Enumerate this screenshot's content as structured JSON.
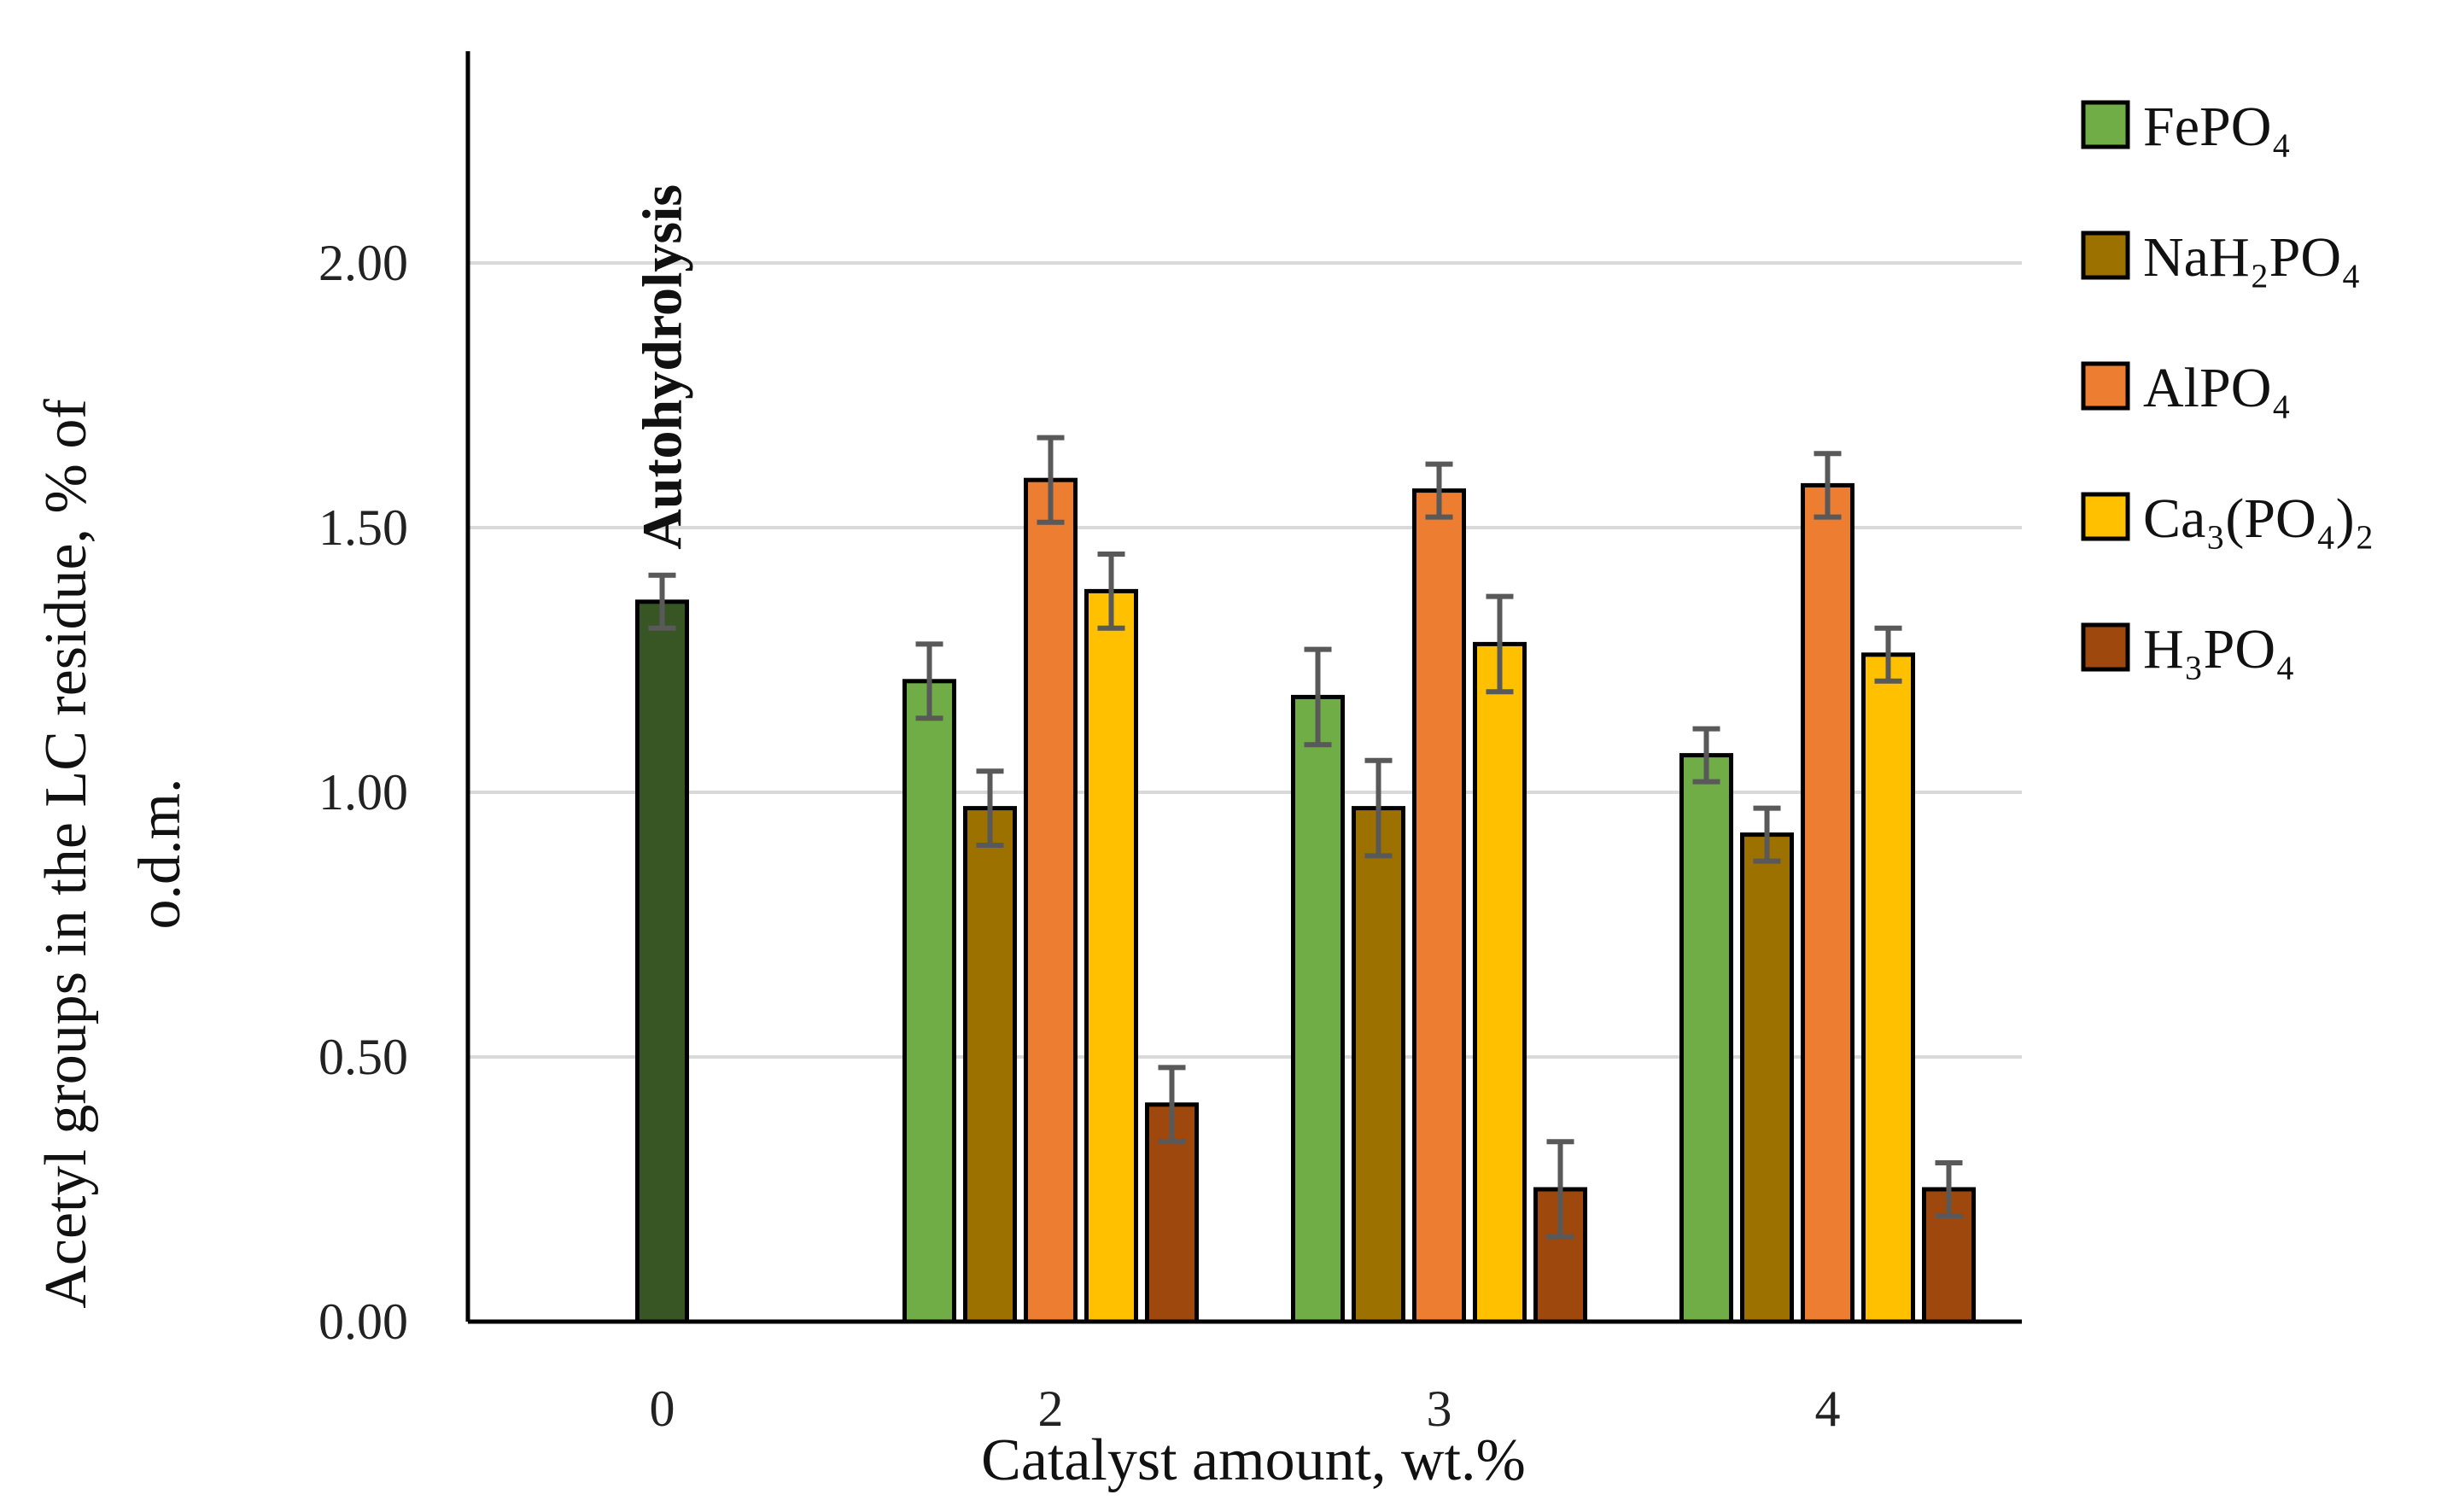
{
  "chart_data": {
    "type": "bar",
    "title": "",
    "xlabel": "Catalyst amount, wt.%",
    "ylabel_lines": [
      "Acetyl groups in the LC residue,  % of",
      "o.d.m."
    ],
    "ylim": [
      0,
      2.4
    ],
    "yticks": [
      0,
      0.5,
      1.0,
      1.5,
      2.0
    ],
    "ytick_labels": [
      "0.00",
      "0.50",
      "1.00",
      "1.50",
      "2.00"
    ],
    "grid": "horizontal",
    "legend_position": "right",
    "categories": [
      "0",
      "2",
      "3",
      "4"
    ],
    "annotation": {
      "text": "Autohydrolysis",
      "category": "0"
    },
    "autohydrolysis": {
      "category": "0",
      "value": 1.36,
      "error": 0.05,
      "color": "#375623"
    },
    "series": [
      {
        "name": "FePO₄",
        "color": "#70AD47",
        "values": [
          null,
          1.21,
          1.18,
          1.07
        ],
        "errors": [
          null,
          0.07,
          0.09,
          0.05
        ]
      },
      {
        "name": "NaH₂PO₄",
        "color": "#9C7100",
        "values": [
          null,
          0.97,
          0.97,
          0.92
        ],
        "errors": [
          null,
          0.07,
          0.09,
          0.05
        ]
      },
      {
        "name": "AlPO₄",
        "color": "#ED7D31",
        "values": [
          null,
          1.59,
          1.57,
          1.58
        ],
        "errors": [
          null,
          0.08,
          0.05,
          0.06
        ]
      },
      {
        "name": "Ca₃(PO₄)₂",
        "color": "#FFC000",
        "values": [
          null,
          1.38,
          1.28,
          1.26
        ],
        "errors": [
          null,
          0.07,
          0.09,
          0.05
        ]
      },
      {
        "name": "H₃PO₄",
        "color": "#9E480E",
        "values": [
          null,
          0.41,
          0.25,
          0.25
        ],
        "errors": [
          null,
          0.07,
          0.09,
          0.05
        ]
      }
    ]
  }
}
